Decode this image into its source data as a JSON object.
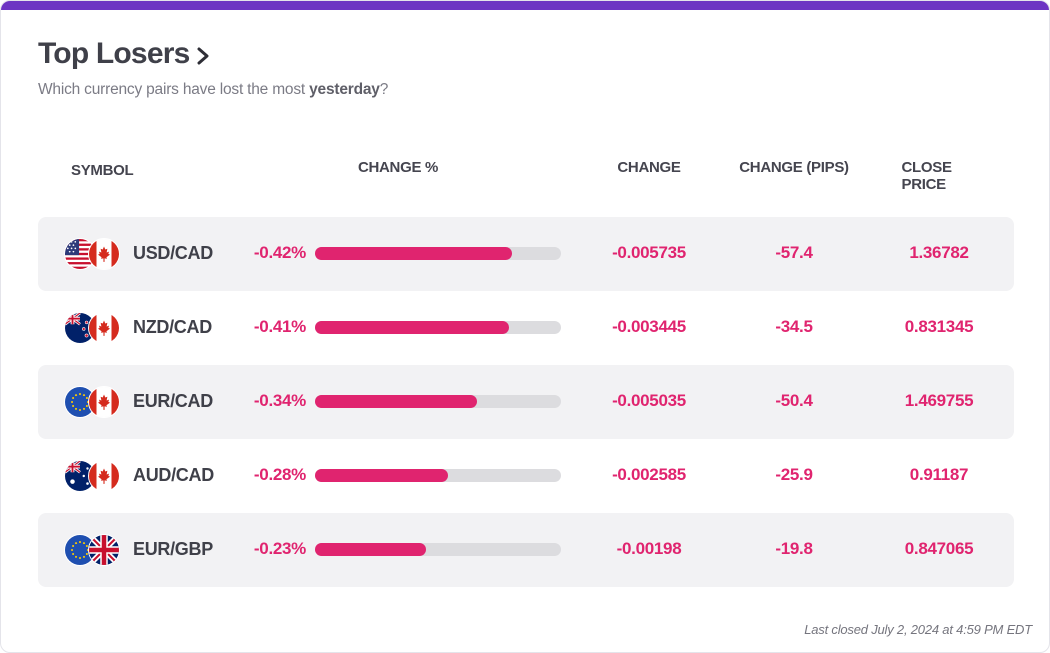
{
  "header": {
    "title": "Top Losers",
    "subtitle_prefix": "Which currency pairs have lost the most ",
    "subtitle_emphasis": "yesterday",
    "subtitle_suffix": "?"
  },
  "table": {
    "columns": {
      "symbol": "SYMBOL",
      "change_pct": "CHANGE %",
      "change": "CHANGE",
      "change_pips": "CHANGE (PIPS)",
      "close_price": "CLOSE PRICE"
    },
    "rows": [
      {
        "symbol": "USD/CAD",
        "base_flag": "us-flag-icon",
        "quote_flag": "canada-flag-icon",
        "change_pct": "-0.42%",
        "bar_fraction": 0.8,
        "change": "-0.005735",
        "change_pips": "-57.4",
        "close_price": "1.36782"
      },
      {
        "symbol": "NZD/CAD",
        "base_flag": "new-zealand-flag-icon",
        "quote_flag": "canada-flag-icon",
        "change_pct": "-0.41%",
        "bar_fraction": 0.79,
        "change": "-0.003445",
        "change_pips": "-34.5",
        "close_price": "0.831345"
      },
      {
        "symbol": "EUR/CAD",
        "base_flag": "eu-flag-icon",
        "quote_flag": "canada-flag-icon",
        "change_pct": "-0.34%",
        "bar_fraction": 0.66,
        "change": "-0.005035",
        "change_pips": "-50.4",
        "close_price": "1.469755"
      },
      {
        "symbol": "AUD/CAD",
        "base_flag": "australia-flag-icon",
        "quote_flag": "canada-flag-icon",
        "change_pct": "-0.28%",
        "bar_fraction": 0.54,
        "change": "-0.002585",
        "change_pips": "-25.9",
        "close_price": "0.91187"
      },
      {
        "symbol": "EUR/GBP",
        "base_flag": "eu-flag-icon",
        "quote_flag": "uk-flag-icon",
        "change_pct": "-0.23%",
        "bar_fraction": 0.45,
        "change": "-0.00198",
        "change_pips": "-19.8",
        "close_price": "0.847065"
      }
    ]
  },
  "footer": {
    "last_closed": "Last closed July 2, 2024 at 4:59 PM EDT"
  },
  "colors": {
    "accent_bar": "#6d35c3",
    "loss": "#e0246f",
    "track": "#dcdcdf",
    "row_shade": "#f2f2f4"
  }
}
